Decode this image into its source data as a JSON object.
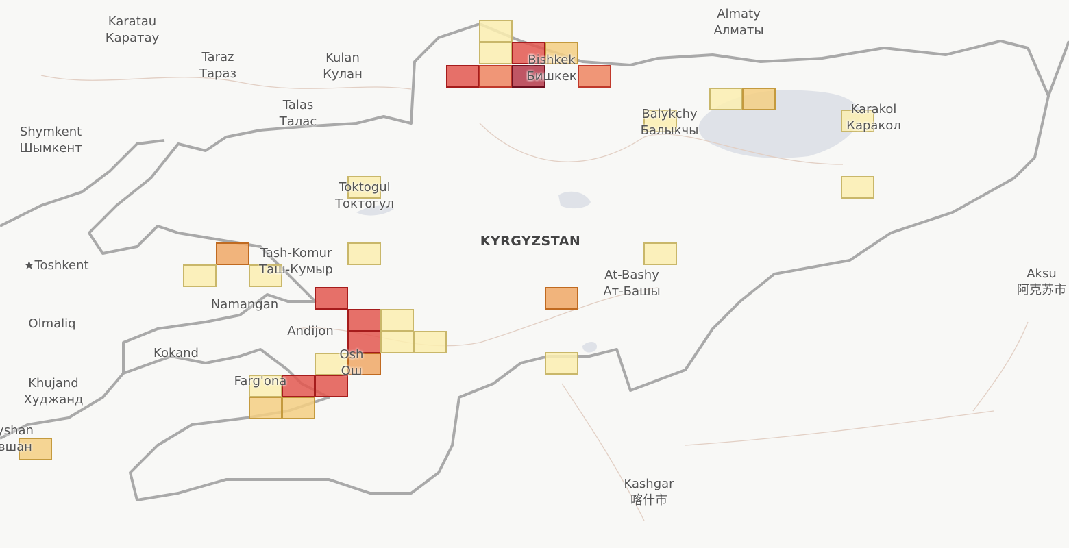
{
  "map": {
    "country_label": "KYRGYZSTAN",
    "places": [
      {
        "name": "Karatau",
        "local": "Каратау"
      },
      {
        "name": "Taraz",
        "local": "Тараз"
      },
      {
        "name": "Kulan",
        "local": "Кулан"
      },
      {
        "name": "Almaty",
        "local": "Алматы"
      },
      {
        "name": "Bishkek",
        "local": "Бишкек"
      },
      {
        "name": "Talas",
        "local": "Талас"
      },
      {
        "name": "Shymkent",
        "local": "Шымкент"
      },
      {
        "name": "Balykchy",
        "local": "Балыкчы"
      },
      {
        "name": "Karakol",
        "local": "Каракол"
      },
      {
        "name": "Toktogul",
        "local": "Токтогул"
      },
      {
        "name": "Tash-Komur",
        "local": "Таш-Кумыр"
      },
      {
        "name": "Toshkent",
        "local": ""
      },
      {
        "name": "Namangan",
        "local": ""
      },
      {
        "name": "Olmaliq",
        "local": ""
      },
      {
        "name": "Andijon",
        "local": ""
      },
      {
        "name": "Kokand",
        "local": ""
      },
      {
        "name": "Osh",
        "local": "Ош"
      },
      {
        "name": "Khujand",
        "local": "Худжанд"
      },
      {
        "name": "Farg'ona",
        "local": ""
      },
      {
        "name": "At-Bashy",
        "local": "Ат-Башы"
      },
      {
        "name": "Aksu",
        "local": "阿克苏市"
      },
      {
        "name": "Kashgar",
        "local": "喀什市"
      },
      {
        "name": "yshan",
        "local": "вшан"
      }
    ],
    "level_colors": {
      "1": {
        "fill": "#fbeeb0",
        "stroke": "#c9b76a"
      },
      "2": {
        "fill": "#f5cf83",
        "stroke": "#c49a3e"
      },
      "3": {
        "fill": "#f0a866",
        "stroke": "#c06a20"
      },
      "4": {
        "fill": "#ee8560",
        "stroke": "#c0392b"
      },
      "5": {
        "fill": "#e35850",
        "stroke": "#a51c1c"
      },
      "6": {
        "fill": "#b53a4a",
        "stroke": "#6e1020"
      }
    },
    "cells": [
      {
        "level": 1
      },
      {
        "level": 1
      },
      {
        "level": 5
      },
      {
        "level": 2
      },
      {
        "level": 5
      },
      {
        "level": 4
      },
      {
        "level": 6
      },
      {
        "level": 4
      },
      {
        "level": 1
      },
      {
        "level": 2
      },
      {
        "level": 1
      },
      {
        "level": 1
      },
      {
        "level": 1
      },
      {
        "level": 1
      },
      {
        "level": 1
      },
      {
        "level": 3
      },
      {
        "level": 1
      },
      {
        "level": 1
      },
      {
        "level": 1
      },
      {
        "level": 3
      },
      {
        "level": 1
      },
      {
        "level": 5
      },
      {
        "level": 5
      },
      {
        "level": 5
      },
      {
        "level": 1
      },
      {
        "level": 1
      },
      {
        "level": 1
      },
      {
        "level": 1
      },
      {
        "level": 3
      },
      {
        "level": 1
      },
      {
        "level": 5
      },
      {
        "level": 5
      },
      {
        "level": 2
      },
      {
        "level": 2
      },
      {
        "level": 2
      }
    ]
  }
}
